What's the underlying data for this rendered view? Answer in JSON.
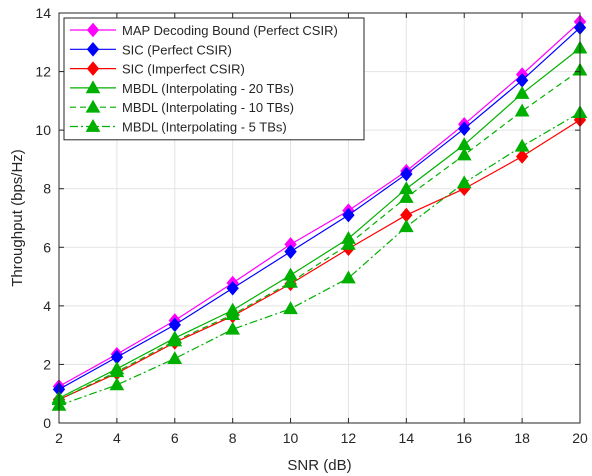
{
  "chart_data": {
    "type": "line",
    "xlabel": "SNR (dB)",
    "ylabel": "Throughput (bps/Hz)",
    "xlim": [
      2,
      20
    ],
    "ylim": [
      0,
      14
    ],
    "xticks": [
      2,
      4,
      6,
      8,
      10,
      12,
      14,
      16,
      18,
      20
    ],
    "yticks": [
      0,
      2,
      4,
      6,
      8,
      10,
      12,
      14
    ],
    "grid": true,
    "legend_position": "top-left",
    "x": [
      2,
      4,
      6,
      8,
      10,
      12,
      14,
      16,
      18,
      20
    ],
    "series": [
      {
        "name": "MAP Decoding Bound (Perfect CSIR)",
        "color": "#ff00ff",
        "marker": "diamond",
        "line_style": "solid",
        "values": [
          1.25,
          2.35,
          3.5,
          4.78,
          6.1,
          7.25,
          8.6,
          10.2,
          11.9,
          13.7
        ]
      },
      {
        "name": "SIC (Perfect CSIR)",
        "color": "#0000ff",
        "marker": "diamond",
        "line_style": "solid",
        "values": [
          1.15,
          2.25,
          3.35,
          4.6,
          5.85,
          7.1,
          8.5,
          10.05,
          11.7,
          13.5
        ]
      },
      {
        "name": "SIC (Imperfect CSIR)",
        "color": "#ff0000",
        "marker": "diamond",
        "line_style": "solid",
        "values": [
          0.8,
          1.7,
          2.75,
          3.65,
          4.75,
          5.95,
          7.1,
          8.0,
          9.1,
          10.35
        ]
      },
      {
        "name": "MBDL (Interpolating - 20 TBs)",
        "color": "#00b000",
        "marker": "triangle",
        "line_style": "solid",
        "values": [
          0.85,
          1.85,
          2.9,
          3.85,
          5.05,
          6.3,
          8.0,
          9.5,
          11.25,
          12.8
        ]
      },
      {
        "name": "MBDL (Interpolating - 10 TBs)",
        "color": "#00b000",
        "marker": "triangle",
        "line_style": "dashed",
        "values": [
          0.8,
          1.75,
          2.8,
          3.7,
          4.8,
          6.1,
          7.7,
          9.15,
          10.65,
          12.05
        ]
      },
      {
        "name": "MBDL (Interpolating - 5 TBs)",
        "color": "#00b000",
        "marker": "triangle",
        "line_style": "dashdot",
        "values": [
          0.6,
          1.3,
          2.2,
          3.2,
          3.9,
          4.95,
          6.7,
          8.2,
          9.45,
          10.6
        ]
      }
    ]
  }
}
